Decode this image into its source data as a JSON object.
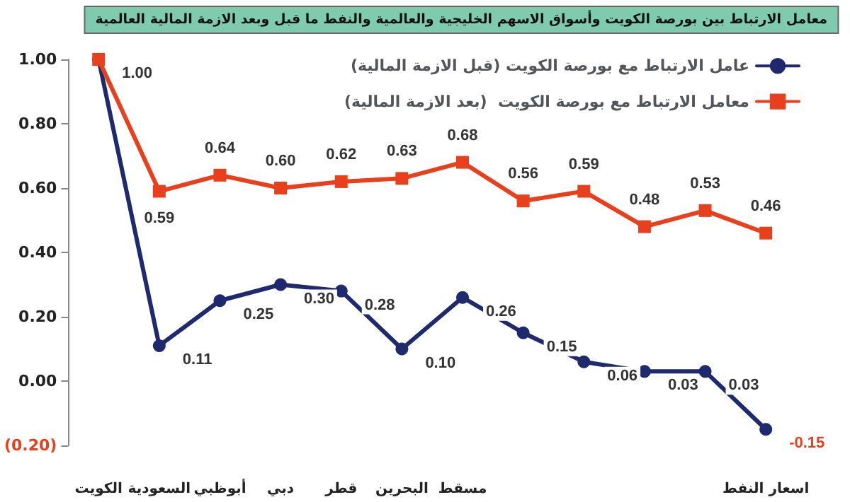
{
  "chart_data": {
    "type": "line",
    "title": "معامل الارتباط بين بورصة الكويت وأسواق الاسهم الخليجية والعالمية والنفط ما قبل وبعد الازمة المالية العالمية",
    "categories": [
      "الكويت",
      "السعودية",
      "أبوظبي",
      "دبي",
      "قطر",
      "البحرين",
      "مسقط",
      null,
      null,
      null,
      null,
      "اسعار النفط"
    ],
    "series": [
      {
        "name": "عامل الارتباط مع بورصة الكويت (قبل الازمة المالية)",
        "color": "#1f2a6e",
        "values": [
          1.0,
          0.11,
          0.25,
          0.3,
          0.28,
          0.1,
          0.26,
          0.15,
          0.06,
          0.03,
          0.03,
          -0.15
        ],
        "value_labels": [
          "1.00",
          "0.11",
          "0.25",
          "0.30",
          "0.28",
          "0.10",
          "0.26",
          "0.15",
          "0.06",
          "0.03",
          "0.03",
          "-0.15"
        ],
        "marker": "circle"
      },
      {
        "name": "معامل الارتباط مع بورصة الكويت  (بعد الازمة المالية)",
        "color": "#e8401c",
        "values": [
          1.0,
          0.59,
          0.64,
          0.6,
          0.62,
          0.63,
          0.68,
          0.56,
          0.59,
          0.48,
          0.53,
          0.46
        ],
        "value_labels": [
          null,
          "0.59",
          "0.64",
          "0.60",
          "0.62",
          "0.63",
          "0.68",
          "0.56",
          "0.59",
          "0.48",
          "0.53",
          "0.46"
        ],
        "marker": "square"
      }
    ],
    "ylim": [
      -0.2,
      1.0
    ],
    "yticks": [
      {
        "value": -0.2,
        "label": "(0.20)"
      },
      {
        "value": 0,
        "label": "0.00"
      },
      {
        "value": 0.2,
        "label": "0.20"
      },
      {
        "value": 0.4,
        "label": "0.40"
      },
      {
        "value": 0.6,
        "label": "0.60"
      },
      {
        "value": 0.8,
        "label": "0.80"
      },
      {
        "value": 1.0,
        "label": "1.00"
      }
    ],
    "grid": false,
    "legend": "top right",
    "line_style": "solid"
  }
}
